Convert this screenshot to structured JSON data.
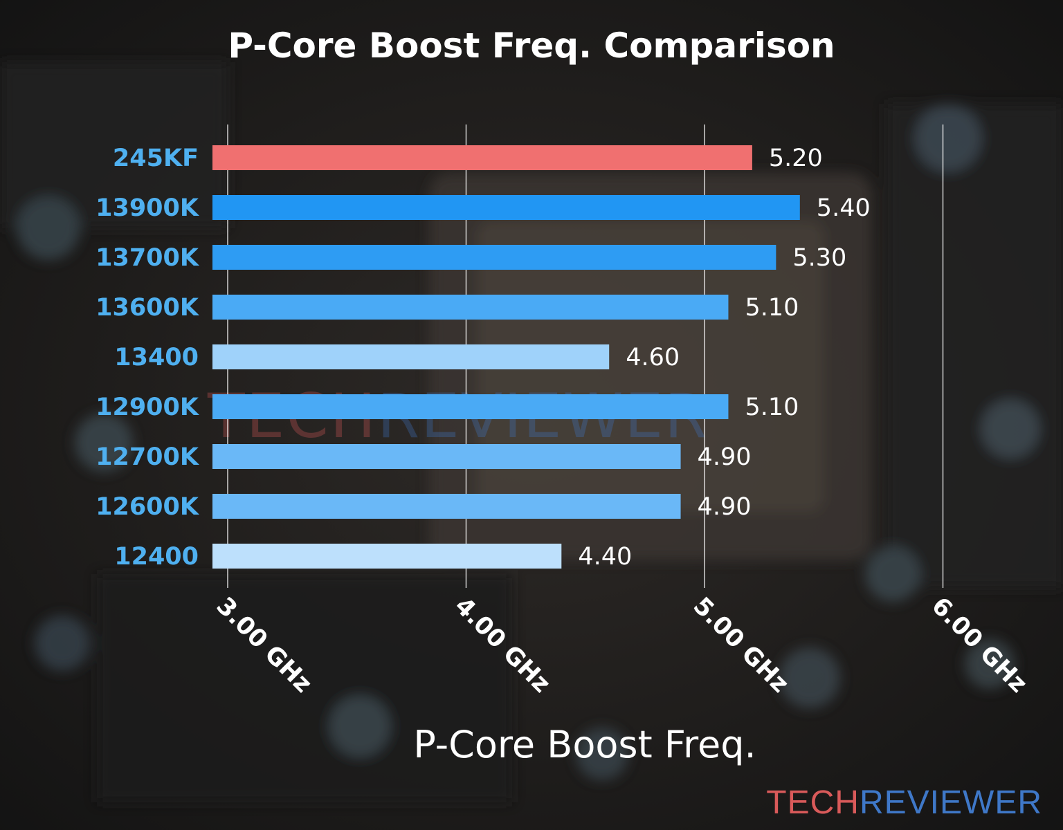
{
  "brand": {
    "logo_part1": "TECH",
    "logo_part2": "REVIEWER",
    "color_part1": "#d95a5a",
    "color_part2": "#3f78c8"
  },
  "chart_data": {
    "type": "bar",
    "orientation": "horizontal",
    "title": "P-Core Boost Freq. Comparison",
    "xlabel": "P-Core Boost Freq.",
    "ylabel": "",
    "xlim": [
      3.0,
      6.0
    ],
    "xticks": [
      3.0,
      4.0,
      5.0,
      6.0
    ],
    "xtick_labels": [
      "3.00 GHz",
      "4.00 GHz",
      "5.00 GHz",
      "6.00 GHz"
    ],
    "grid": true,
    "categories": [
      "245KF",
      "13900K",
      "13700K",
      "13600K",
      "13400",
      "12900K",
      "12700K",
      "12600K",
      "12400"
    ],
    "values": [
      5.2,
      5.4,
      5.3,
      5.1,
      4.6,
      5.1,
      4.9,
      4.9,
      4.4
    ],
    "value_labels": [
      "5.20",
      "5.40",
      "5.30",
      "5.10",
      "4.60",
      "5.10",
      "4.90",
      "4.90",
      "4.40"
    ],
    "bar_colors": [
      "#f07070",
      "#2196f3",
      "#2e9cf3",
      "#4aaaf5",
      "#9fd2fa",
      "#4aaaf5",
      "#6ab8f7",
      "#6ab8f7",
      "#bde0fc"
    ],
    "category_label_color": "#4fb0f0"
  }
}
